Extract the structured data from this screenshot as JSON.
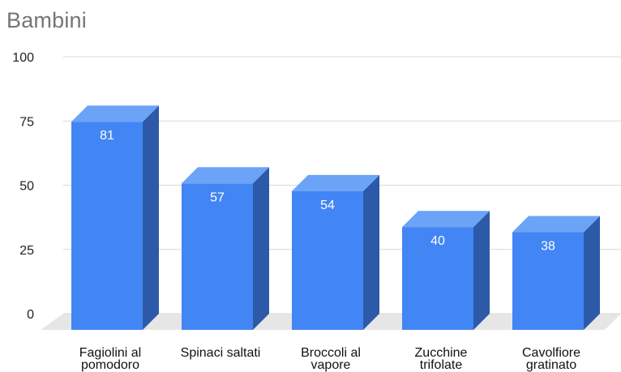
{
  "chart_data": {
    "type": "bar",
    "style": "3d-column",
    "title": "Bambini",
    "categories": [
      [
        "Fagiolini al",
        "pomodoro"
      ],
      [
        "Spinaci saltati"
      ],
      [
        "Broccoli al",
        "vapore"
      ],
      [
        "Zucchine",
        "trifolate"
      ],
      [
        "Cavolfiore",
        "gratinato"
      ]
    ],
    "values": [
      81,
      57,
      54,
      40,
      38
    ],
    "data_labels": [
      "81",
      "57",
      "54",
      "40",
      "38"
    ],
    "ylim": [
      0,
      100
    ],
    "yticks": [
      "0",
      "25",
      "50",
      "75",
      "100"
    ],
    "grid": true,
    "legend": "none",
    "colors": {
      "front": "#4285f4",
      "top": "#6ba3f7",
      "side": "#2d5aa8",
      "floor": "#e6e6e6",
      "grid": "#d9d9d9",
      "title": "#757575"
    }
  }
}
